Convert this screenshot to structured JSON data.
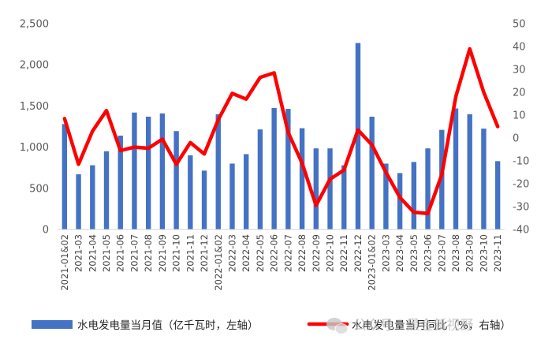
{
  "chart_data": {
    "type": "bar+line",
    "categories": [
      "2021-01&02",
      "2021-03",
      "2021-04",
      "2021-05",
      "2021-06",
      "2021-07",
      "2021-08",
      "2021-09",
      "2021-10",
      "2021-11",
      "2021-12",
      "2022-01&02",
      "2022-03",
      "2022-04",
      "2022-05",
      "2022-06",
      "2022-07",
      "2022-08",
      "2022-09",
      "2022-10",
      "2022-11",
      "2022-12",
      "2023-01&02",
      "2023-03",
      "2023-04",
      "2023-05",
      "2023-06",
      "2023-07",
      "2023-08",
      "2023-09",
      "2023-10",
      "2023-11"
    ],
    "series": [
      {
        "name": "水电发电量当月值（亿千瓦时，左轴）",
        "type": "bar",
        "axis": "left",
        "color": "#4472C4",
        "values": [
          1280,
          670,
          780,
          950,
          1140,
          1420,
          1370,
          1410,
          1195,
          900,
          715,
          1400,
          800,
          915,
          1215,
          1475,
          1465,
          1230,
          985,
          985,
          780,
          2265,
          1370,
          800,
          685,
          820,
          985,
          1210,
          1470,
          1400,
          1225,
          830
        ]
      },
      {
        "name": "水电发电量当月同比（%，右轴）",
        "type": "line",
        "axis": "right",
        "color": "#FF0000",
        "values": [
          8.5,
          -11.5,
          3,
          12,
          -5.5,
          -4,
          -4.5,
          -0.5,
          -11.5,
          -2,
          -7,
          8,
          19.5,
          17,
          26.5,
          28.5,
          2.5,
          -11,
          -29.5,
          -18,
          -14,
          3.5,
          -3,
          -15,
          -26,
          -32.5,
          -33,
          -16,
          18,
          39,
          20,
          5
        ]
      }
    ],
    "y_left": {
      "min": 0,
      "max": 2500,
      "step": 500,
      "tick_labels": [
        "0",
        "500",
        "1,000",
        "1,500",
        "2,000",
        "2,500"
      ]
    },
    "y_right": {
      "min": -40,
      "max": 50,
      "step": 10,
      "tick_labels": [
        "-40",
        "-30",
        "-20",
        "-10",
        "0",
        "10",
        "20",
        "30",
        "40",
        "50"
      ]
    },
    "grid": false,
    "legend_position": "bottom"
  },
  "legend": {
    "bar_label": "水电发电量当月值（亿千瓦时，左轴）",
    "line_label": "水电发电量当月同比（%，右轴）"
  },
  "watermark": {
    "text": "公众号 · 黑金新视野",
    "icon": "wechat-icon"
  }
}
